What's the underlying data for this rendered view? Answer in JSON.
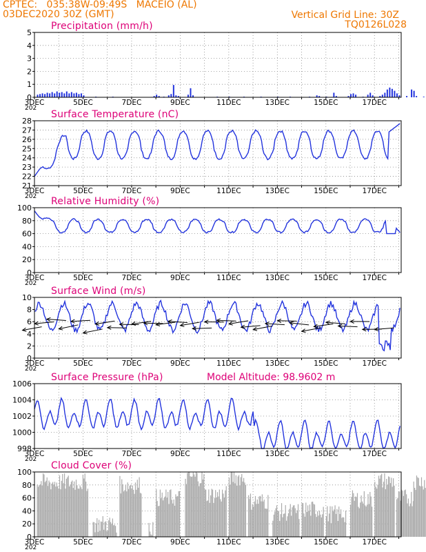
{
  "header": {
    "line1": "CPTEC:   035:38W-09:49S   MACEIO (AL)",
    "line2": "03DEC2020 30Z (GMT)",
    "grid_line": "Vertical Grid Line: 30Z",
    "code": "TQ0126L028",
    "model_altitude": "Model Altitude: 98.9602 m",
    "color": "#ee7700"
  },
  "colors": {
    "title": "#dd0077",
    "line": "#2233dd",
    "wind_vector": "#000000",
    "cloud_fill": "#aaaaaa",
    "axis": "#000000"
  },
  "x_ticks": [
    "3DEC",
    "5DEC",
    "7DEC",
    "9DEC",
    "11DEC",
    "13DEC",
    "15DEC",
    "17DEC"
  ],
  "x_corner_label": "202",
  "chart_data": [
    {
      "type": "bar",
      "title": "Precipitation (mm/h)",
      "ylim": [
        0,
        5
      ],
      "yticks": [
        "0",
        "1",
        "2",
        "3",
        "4",
        "5"
      ],
      "grid": true,
      "bars": [
        {
          "day": 0.1,
          "value": 0.2
        },
        {
          "day": 0.2,
          "value": 0.25
        },
        {
          "day": 0.3,
          "value": 0.3
        },
        {
          "day": 0.4,
          "value": 0.25
        },
        {
          "day": 0.5,
          "value": 0.35
        },
        {
          "day": 0.6,
          "value": 0.3
        },
        {
          "day": 0.7,
          "value": 0.4
        },
        {
          "day": 0.8,
          "value": 0.3
        },
        {
          "day": 0.9,
          "value": 0.45
        },
        {
          "day": 1.0,
          "value": 0.35
        },
        {
          "day": 1.1,
          "value": 0.4
        },
        {
          "day": 1.2,
          "value": 0.3
        },
        {
          "day": 1.3,
          "value": 0.45
        },
        {
          "day": 1.4,
          "value": 0.3
        },
        {
          "day": 1.5,
          "value": 0.4
        },
        {
          "day": 1.6,
          "value": 0.3
        },
        {
          "day": 1.7,
          "value": 0.35
        },
        {
          "day": 1.8,
          "value": 0.25
        },
        {
          "day": 1.9,
          "value": 0.3
        },
        {
          "day": 2.0,
          "value": 0.15
        },
        {
          "day": 2.5,
          "value": 0.05
        },
        {
          "day": 3.2,
          "value": 0.05
        },
        {
          "day": 4.9,
          "value": 0.1
        },
        {
          "day": 5.0,
          "value": 0.2
        },
        {
          "day": 5.1,
          "value": 0.1
        },
        {
          "day": 5.3,
          "value": 0.05
        },
        {
          "day": 5.5,
          "value": 0.15
        },
        {
          "day": 5.6,
          "value": 0.25
        },
        {
          "day": 5.7,
          "value": 0.95
        },
        {
          "day": 5.8,
          "value": 0.15
        },
        {
          "day": 5.9,
          "value": 0.1
        },
        {
          "day": 6.3,
          "value": 0.2
        },
        {
          "day": 6.4,
          "value": 0.7
        },
        {
          "day": 6.5,
          "value": 0.15
        },
        {
          "day": 7.5,
          "value": 0.05
        },
        {
          "day": 8.0,
          "value": 0.05
        },
        {
          "day": 8.6,
          "value": 0.05
        },
        {
          "day": 9.3,
          "value": 0.05
        },
        {
          "day": 10.0,
          "value": 0.05
        },
        {
          "day": 10.5,
          "value": 0.05
        },
        {
          "day": 11.3,
          "value": 0.05
        },
        {
          "day": 11.6,
          "value": 0.15
        },
        {
          "day": 11.7,
          "value": 0.1
        },
        {
          "day": 12.0,
          "value": 0.05
        },
        {
          "day": 12.3,
          "value": 0.35
        },
        {
          "day": 12.4,
          "value": 0.1
        },
        {
          "day": 12.9,
          "value": 0.1
        },
        {
          "day": 13.0,
          "value": 0.25
        },
        {
          "day": 13.1,
          "value": 0.3
        },
        {
          "day": 13.2,
          "value": 0.2
        },
        {
          "day": 13.5,
          "value": 0.05
        },
        {
          "day": 13.7,
          "value": 0.2
        },
        {
          "day": 13.8,
          "value": 0.35
        },
        {
          "day": 13.9,
          "value": 0.15
        },
        {
          "day": 14.2,
          "value": 0.1
        },
        {
          "day": 14.3,
          "value": 0.2
        },
        {
          "day": 14.4,
          "value": 0.35
        },
        {
          "day": 14.5,
          "value": 0.6
        },
        {
          "day": 14.6,
          "value": 0.75
        },
        {
          "day": 14.7,
          "value": 0.65
        },
        {
          "day": 14.8,
          "value": 0.5
        },
        {
          "day": 14.9,
          "value": 0.3
        },
        {
          "day": 15.0,
          "value": 0.15
        },
        {
          "day": 15.3,
          "value": 0.1
        },
        {
          "day": 15.5,
          "value": 0.6
        },
        {
          "day": 15.6,
          "value": 0.5
        },
        {
          "day": 15.7,
          "value": 0.1
        },
        {
          "day": 16.0,
          "value": 0.05
        },
        {
          "day": 16.5,
          "value": 0.05
        }
      ]
    },
    {
      "type": "line",
      "title": "Surface Temperature (nC)",
      "ylim": [
        21,
        28
      ],
      "yticks": [
        "21",
        "22",
        "23",
        "24",
        "25",
        "26",
        "27",
        "28"
      ],
      "grid": true,
      "pattern": {
        "mean": 25.4,
        "amp": 1.5,
        "peak_day_offset": 0.12,
        "sharp": 1.5,
        "noise": 0.25,
        "start_low": 22.0,
        "ramp_days": 1.3,
        "end_peak": 27.8
      },
      "series_points": []
    },
    {
      "type": "line",
      "title": "Relative Humidity (%)",
      "ylim": [
        0,
        100
      ],
      "yticks": [
        "0",
        "20",
        "40",
        "60",
        "80",
        "100"
      ],
      "grid": true,
      "pattern": {
        "mean": 72,
        "amp": 10,
        "peak_day_offset": 0.62,
        "sharp": 1.6,
        "noise": 2.5,
        "start_high": 95,
        "ramp_days": 0.7,
        "end_low": 56
      }
    },
    {
      "type": "line",
      "title": "Surface Wind (m/s)",
      "ylim": [
        0,
        10
      ],
      "yticks": [
        "0",
        "2",
        "4",
        "6",
        "8",
        "10"
      ],
      "grid": true,
      "pattern": {
        "mean": 6.8,
        "amp": 2.2,
        "peak_day_offset": 0.2,
        "sharp": 1.0,
        "noise": 1.0,
        "low_end": 1.2
      },
      "vector_y": 5.5,
      "vectors_per_day": 1
    },
    {
      "type": "line",
      "title": "Surface Pressure (hPa)",
      "ylim": [
        998,
        1006
      ],
      "yticks": [
        "998",
        "1000",
        "1002",
        "1004",
        "1006"
      ],
      "grid": true,
      "pattern": {
        "mean": 1002.0,
        "amp": 1.6,
        "semi": true,
        "trend_break_day": 9.0,
        "late_mean": 999.4,
        "noise": 0.4
      }
    },
    {
      "type": "area",
      "title": "Cloud Cover (%)",
      "ylim": [
        0,
        100
      ],
      "yticks": [
        "0",
        "20",
        "40",
        "60",
        "80",
        "100"
      ],
      "grid": true,
      "blocks": [
        {
          "from": 0.1,
          "to": 2.2,
          "level": 84
        },
        {
          "from": 2.4,
          "to": 3.4,
          "level": 20
        },
        {
          "from": 3.5,
          "to": 4.4,
          "level": 80
        },
        {
          "from": 4.7,
          "to": 4.9,
          "level": 15
        },
        {
          "from": 5.0,
          "to": 6.0,
          "level": 60
        },
        {
          "from": 6.2,
          "to": 7.0,
          "level": 92
        },
        {
          "from": 7.0,
          "to": 7.9,
          "level": 65
        },
        {
          "from": 8.0,
          "to": 8.7,
          "level": 92
        },
        {
          "from": 8.8,
          "to": 9.6,
          "level": 55
        },
        {
          "from": 9.8,
          "to": 10.9,
          "level": 38
        },
        {
          "from": 11.0,
          "to": 11.9,
          "level": 42
        },
        {
          "from": 12.0,
          "to": 12.8,
          "level": 35
        },
        {
          "from": 13.0,
          "to": 13.9,
          "level": 58
        },
        {
          "from": 14.0,
          "to": 14.8,
          "level": 86
        },
        {
          "from": 14.9,
          "to": 15.6,
          "level": 60
        },
        {
          "from": 15.6,
          "to": 16.6,
          "level": 86
        },
        {
          "from": 16.7,
          "to": 17.4,
          "level": 96
        }
      ]
    }
  ]
}
